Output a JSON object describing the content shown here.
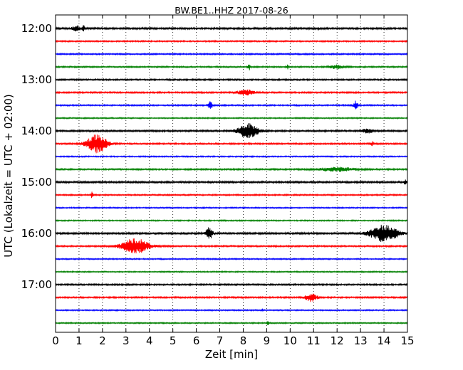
{
  "chart_data": {
    "type": "line",
    "title": "BW.BE1..HHZ 2017-08-26",
    "xlabel": "Zeit  [min]",
    "ylabel": "UTC (Lokalzeit = UTC + 02:00)",
    "xlim": [
      0,
      15
    ],
    "x_ticks": [
      0,
      1,
      2,
      3,
      4,
      5,
      6,
      7,
      8,
      9,
      10,
      11,
      12,
      13,
      14,
      15
    ],
    "x_tick_labels": [
      "0",
      "1",
      "2",
      "3",
      "4",
      "5",
      "6",
      "7",
      "8",
      "9",
      "10",
      "11",
      "12",
      "13",
      "14",
      "15"
    ],
    "y_tick_labels": [
      "12:00",
      "13:00",
      "14:00",
      "15:00",
      "16:00",
      "17:00"
    ],
    "grid": "vertical dotted at each minute",
    "trace_colors": [
      "#000000",
      "#ff0000",
      "#0000ff",
      "#008000"
    ],
    "traces": [
      {
        "start": "12:00",
        "color": "#000000",
        "noise": 1.2,
        "events": [
          {
            "t": 0.9,
            "amp": 4,
            "width": 0.25
          },
          {
            "t": 1.2,
            "amp": 4,
            "width": 0.08
          },
          {
            "t": 11.2,
            "amp": 2,
            "width": 0.05
          }
        ]
      },
      {
        "start": "12:15",
        "color": "#ff0000",
        "noise": 0.9,
        "events": []
      },
      {
        "start": "12:30",
        "color": "#0000ff",
        "noise": 0.9,
        "events": []
      },
      {
        "start": "12:45",
        "color": "#008000",
        "noise": 0.9,
        "events": [
          {
            "t": 8.25,
            "amp": 5,
            "width": 0.07
          },
          {
            "t": 9.9,
            "amp": 3,
            "width": 0.05
          },
          {
            "t": 12.0,
            "amp": 2.5,
            "width": 0.4
          }
        ]
      },
      {
        "start": "13:00",
        "color": "#000000",
        "noise": 1.0,
        "events": []
      },
      {
        "start": "13:15",
        "color": "#ff0000",
        "noise": 1.0,
        "events": [
          {
            "t": 8.1,
            "amp": 4,
            "width": 0.5
          }
        ]
      },
      {
        "start": "13:30",
        "color": "#0000ff",
        "noise": 0.9,
        "events": [
          {
            "t": 6.6,
            "amp": 6,
            "width": 0.12
          },
          {
            "t": 12.8,
            "amp": 6,
            "width": 0.12
          }
        ]
      },
      {
        "start": "13:45",
        "color": "#008000",
        "noise": 0.8,
        "events": []
      },
      {
        "start": "14:00",
        "color": "#000000",
        "noise": 1.1,
        "events": [
          {
            "t": 8.2,
            "amp": 10,
            "width": 0.6
          },
          {
            "t": 13.3,
            "amp": 3,
            "width": 0.3
          }
        ]
      },
      {
        "start": "14:15",
        "color": "#ff0000",
        "noise": 1.0,
        "events": [
          {
            "t": 1.75,
            "amp": 13,
            "width": 0.6
          },
          {
            "t": 13.5,
            "amp": 3,
            "width": 0.08
          }
        ]
      },
      {
        "start": "14:30",
        "color": "#0000ff",
        "noise": 0.8,
        "events": []
      },
      {
        "start": "14:45",
        "color": "#008000",
        "noise": 1.0,
        "events": [
          {
            "t": 12.0,
            "amp": 3,
            "width": 1.0
          }
        ]
      },
      {
        "start": "15:00",
        "color": "#000000",
        "noise": 1.2,
        "events": [
          {
            "t": 14.9,
            "amp": 3,
            "width": 0.08
          }
        ]
      },
      {
        "start": "15:15",
        "color": "#ff0000",
        "noise": 0.9,
        "events": [
          {
            "t": 1.55,
            "amp": 4,
            "width": 0.06
          }
        ]
      },
      {
        "start": "15:30",
        "color": "#0000ff",
        "noise": 0.8,
        "events": []
      },
      {
        "start": "15:45",
        "color": "#008000",
        "noise": 0.8,
        "events": []
      },
      {
        "start": "16:00",
        "color": "#000000",
        "noise": 1.2,
        "events": [
          {
            "t": 6.55,
            "amp": 8,
            "width": 0.2
          },
          {
            "t": 14.0,
            "amp": 12,
            "width": 0.8
          }
        ]
      },
      {
        "start": "16:15",
        "color": "#ff0000",
        "noise": 1.0,
        "events": [
          {
            "t": 3.4,
            "amp": 11,
            "width": 0.8
          }
        ]
      },
      {
        "start": "16:30",
        "color": "#0000ff",
        "noise": 0.8,
        "events": []
      },
      {
        "start": "16:45",
        "color": "#008000",
        "noise": 0.8,
        "events": []
      },
      {
        "start": "17:00",
        "color": "#000000",
        "noise": 1.0,
        "events": []
      },
      {
        "start": "17:15",
        "color": "#ff0000",
        "noise": 1.0,
        "events": [
          {
            "t": 10.9,
            "amp": 6,
            "width": 0.35
          }
        ]
      },
      {
        "start": "17:30",
        "color": "#0000ff",
        "noise": 0.8,
        "events": [
          {
            "t": 8.8,
            "amp": 2,
            "width": 0.05
          }
        ]
      },
      {
        "start": "17:45",
        "color": "#008000",
        "noise": 0.8,
        "events": [
          {
            "t": 9.05,
            "amp": 3,
            "width": 0.06
          }
        ]
      }
    ]
  }
}
